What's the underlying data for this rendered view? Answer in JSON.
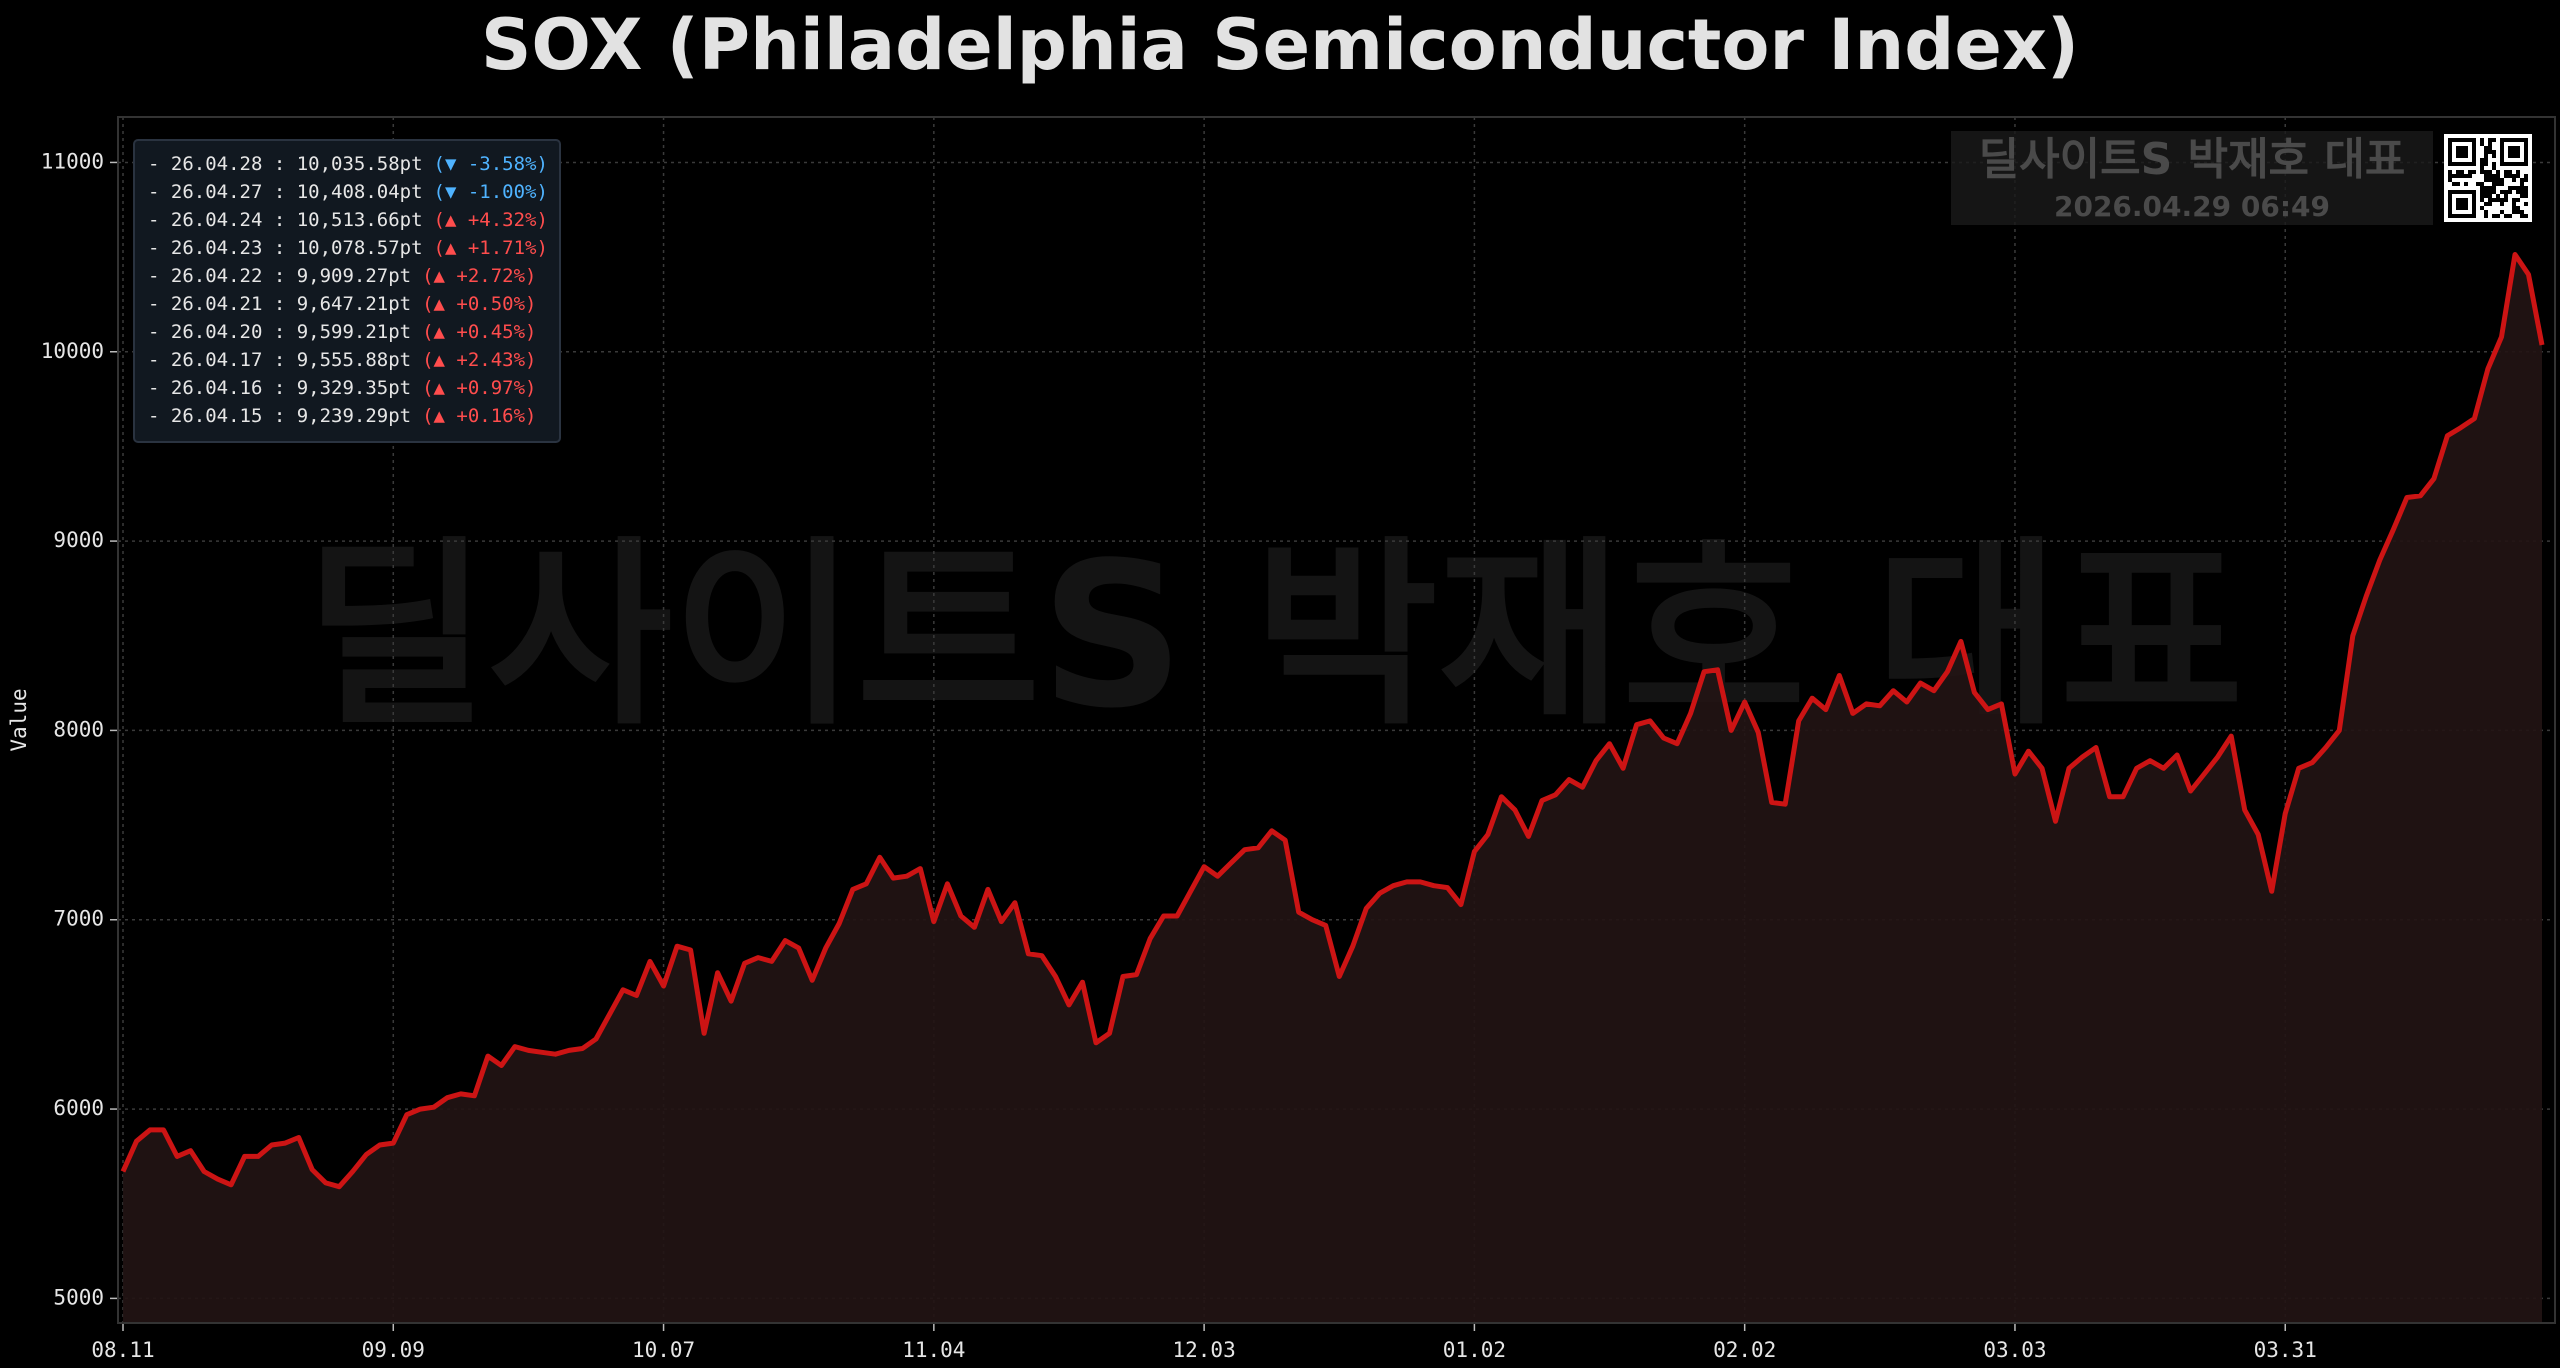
{
  "chart_data": {
    "type": "line",
    "title": "SOX (Philadelphia Semiconductor Index)",
    "ylabel": "Value",
    "categories": [
      "08.11",
      null,
      null,
      null,
      null,
      null,
      null,
      null,
      null,
      null,
      null,
      null,
      null,
      null,
      null,
      null,
      null,
      null,
      null,
      null,
      "09.09",
      null,
      null,
      null,
      null,
      null,
      null,
      null,
      null,
      null,
      null,
      null,
      null,
      null,
      null,
      null,
      null,
      null,
      null,
      null,
      "10.07",
      null,
      null,
      null,
      null,
      null,
      null,
      null,
      null,
      null,
      null,
      null,
      null,
      null,
      null,
      null,
      null,
      null,
      null,
      null,
      "11.04",
      null,
      null,
      null,
      null,
      null,
      null,
      null,
      null,
      null,
      null,
      null,
      null,
      null,
      null,
      null,
      null,
      null,
      null,
      null,
      "12.03",
      null,
      null,
      null,
      null,
      null,
      null,
      null,
      null,
      null,
      null,
      null,
      null,
      null,
      null,
      null,
      null,
      null,
      null,
      null,
      "01.02",
      null,
      null,
      null,
      null,
      null,
      null,
      null,
      null,
      null,
      null,
      null,
      null,
      null,
      null,
      null,
      null,
      null,
      null,
      null,
      "02.02",
      null,
      null,
      null,
      null,
      null,
      null,
      null,
      null,
      null,
      null,
      null,
      null,
      null,
      null,
      null,
      null,
      null,
      null,
      null,
      "03.03",
      null,
      null,
      null,
      null,
      null,
      null,
      null,
      null,
      null,
      null,
      null,
      null,
      null,
      null,
      null,
      null,
      null,
      null,
      null,
      "03.31",
      null,
      null,
      null,
      null,
      null,
      null,
      null,
      null,
      null,
      null,
      null,
      null,
      null,
      null,
      null,
      null,
      null,
      null,
      null
    ],
    "series": [
      {
        "name": "SOX",
        "color": "#cc1414",
        "area_color": "#221414",
        "values": [
          5670,
          5830,
          5890,
          5890,
          5750,
          5780,
          5670,
          5630,
          5600,
          5750,
          5750,
          5810,
          5820,
          5850,
          5680,
          5610,
          5590,
          5670,
          5760,
          5810,
          5820,
          5970,
          6000,
          6010,
          6060,
          6080,
          6070,
          6280,
          6230,
          6330,
          6310,
          6300,
          6290,
          6310,
          6320,
          6370,
          6500,
          6630,
          6600,
          6780,
          6650,
          6860,
          6840,
          6400,
          6720,
          6570,
          6770,
          6800,
          6780,
          6890,
          6850,
          6680,
          6850,
          6980,
          7160,
          7190,
          7330,
          7220,
          7230,
          7270,
          6990,
          7190,
          7020,
          6960,
          7160,
          6990,
          7090,
          6820,
          6810,
          6700,
          6550,
          6670,
          6350,
          6400,
          6700,
          6710,
          6900,
          7020,
          7020,
          7150,
          7280,
          7230,
          7300,
          7370,
          7380,
          7470,
          7420,
          7040,
          7000,
          6970,
          6700,
          6860,
          7060,
          7140,
          7180,
          7200,
          7200,
          7180,
          7170,
          7080,
          7360,
          7450,
          7650,
          7580,
          7440,
          7630,
          7660,
          7740,
          7700,
          7840,
          7930,
          7800,
          8030,
          8050,
          7960,
          7930,
          8090,
          8310,
          8320,
          8000,
          8150,
          7990,
          7620,
          7610,
          8050,
          8170,
          8110,
          8290,
          8090,
          8140,
          8130,
          8210,
          8150,
          8250,
          8210,
          8310,
          8470,
          8200,
          8110,
          8140,
          7770,
          7890,
          7800,
          7520,
          7800,
          7860,
          7910,
          7650,
          7650,
          7800,
          7840,
          7800,
          7870,
          7680,
          7770,
          7860,
          7970,
          7580,
          7450,
          7150,
          7560,
          7800,
          7830,
          7910,
          8000,
          8500,
          8710,
          8900,
          9060,
          9230,
          9239.29,
          9329.35,
          9555.88,
          9599.21,
          9647.21,
          9909.27,
          10078.57,
          10513.66,
          10408.04,
          10035.58
        ]
      }
    ],
    "ylim": [
      4870,
      11240
    ],
    "yticks": [
      5000,
      6000,
      7000,
      8000,
      9000,
      10000,
      11000
    ],
    "grid": true,
    "recent": [
      {
        "label": "- 26.04.28 : 10,035.58pt",
        "change": "(▼ -3.58%)",
        "color": "#4fb3ff"
      },
      {
        "label": "- 26.04.27 : 10,408.04pt",
        "change": "(▼ -1.00%)",
        "color": "#4fb3ff"
      },
      {
        "label": "- 26.04.24 : 10,513.66pt",
        "change": "(▲ +4.32%)",
        "color": "#ff4d4d"
      },
      {
        "label": "- 26.04.23 : 10,078.57pt",
        "change": "(▲ +1.71%)",
        "color": "#ff4d4d"
      },
      {
        "label": "- 26.04.22 : 9,909.27pt",
        "change": "(▲ +2.72%)",
        "color": "#ff4d4d"
      },
      {
        "label": "- 26.04.21 : 9,647.21pt",
        "change": "(▲ +0.50%)",
        "color": "#ff4d4d"
      },
      {
        "label": "- 26.04.20 : 9,599.21pt",
        "change": "(▲ +0.45%)",
        "color": "#ff4d4d"
      },
      {
        "label": "- 26.04.17 : 9,555.88pt",
        "change": "(▲ +2.43%)",
        "color": "#ff4d4d"
      },
      {
        "label": "- 26.04.16 : 9,329.35pt",
        "change": "(▲ +0.97%)",
        "color": "#ff4d4d"
      },
      {
        "label": "- 26.04.15 : 9,239.29pt",
        "change": "(▲ +0.16%)",
        "color": "#ff4d4d"
      }
    ],
    "watermark": "딜사이트S 박재호 대표",
    "stamp": {
      "name": "딜사이트S 박재호 대표",
      "time": "2026.04.29 06:49"
    }
  }
}
